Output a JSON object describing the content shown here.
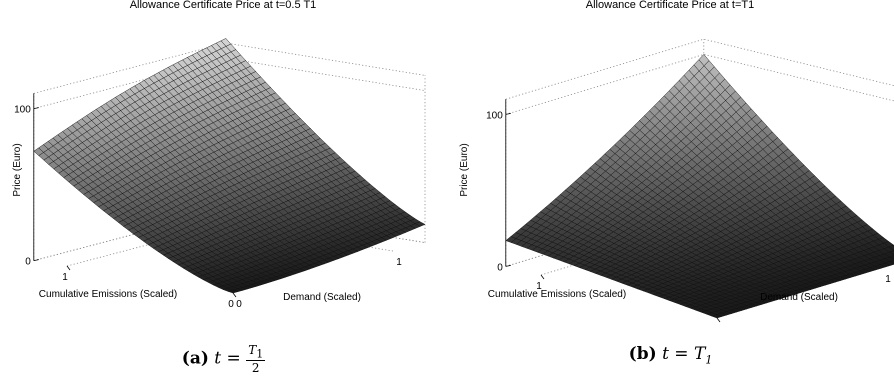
{
  "chart_data": [
    {
      "type": "surface",
      "title": "Allowance Certificate Price at t=0.5 T1",
      "xlabel": "Demand (Scaled)",
      "ylabel": "Cumulative Emissions (Scaled)",
      "zlabel": "Price (Euro)",
      "x_ticks": [
        "0",
        "1"
      ],
      "y_ticks": [
        "0",
        "1"
      ],
      "z_ticks": [
        "0",
        "100"
      ],
      "xlim": [
        0,
        1.2
      ],
      "ylim": [
        0,
        1.2
      ],
      "zlim": [
        0,
        110
      ],
      "surface_corners": {
        "demand_0_emissions_0": 0,
        "demand_max_emissions_0": 12,
        "demand_0_emissions_max": 72,
        "demand_max_emissions_max": 125
      },
      "caption": {
        "label": "(a)",
        "var": "t",
        "num": "T",
        "num_sub": "1",
        "den": "2"
      }
    },
    {
      "type": "surface",
      "title": "Allowance Certificate Price at t=T1",
      "xlabel": "Demand (Scaled)",
      "ylabel": "Cumulative Emissions (Scaled)",
      "zlabel": "Price (Euro)",
      "x_ticks": [
        "0",
        "1"
      ],
      "y_ticks": [
        "0",
        "1"
      ],
      "z_ticks": [
        "0",
        "100"
      ],
      "xlim": [
        0,
        1.2
      ],
      "ylim": [
        0,
        1.2
      ],
      "zlim": [
        0,
        110
      ],
      "surface_corners": {
        "demand_0_emissions_0": 0,
        "demand_max_emissions_0": 0,
        "demand_0_emissions_max": 17,
        "demand_max_emissions_max": 100
      },
      "caption": {
        "label": "(b)",
        "var": "t",
        "rhs": "T",
        "rhs_sub": "1"
      }
    }
  ]
}
